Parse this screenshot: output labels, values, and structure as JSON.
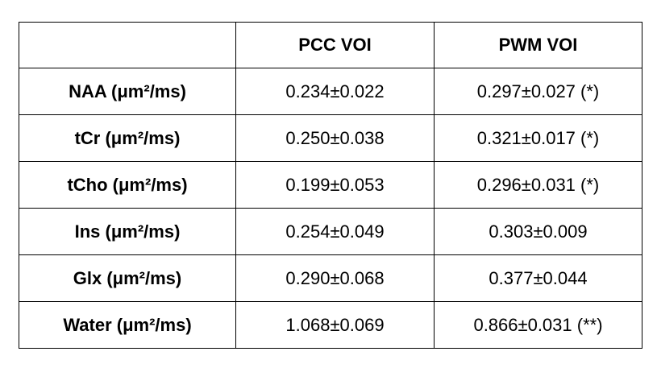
{
  "table": {
    "header": [
      "PCC VOI",
      "PWM VOI"
    ],
    "rows": [
      [
        "NAA (μm²/ms)",
        "0.234±0.022",
        "0.297±0.027 (*)"
      ],
      [
        "tCr (μm²/ms)",
        "0.250±0.038",
        "0.321±0.017 (*)"
      ],
      [
        "tCho (μm²/ms)",
        "0.199±0.053",
        "0.296±0.031 (*)"
      ],
      [
        "Ins (μm²/ms)",
        "0.254±0.049",
        "0.303±0.009"
      ],
      [
        "Glx (μm²/ms)",
        "0.290±0.068",
        "0.377±0.044"
      ],
      [
        "Water (μm²/ms)",
        "1.068±0.069",
        "0.866±0.031 (**)"
      ]
    ]
  }
}
